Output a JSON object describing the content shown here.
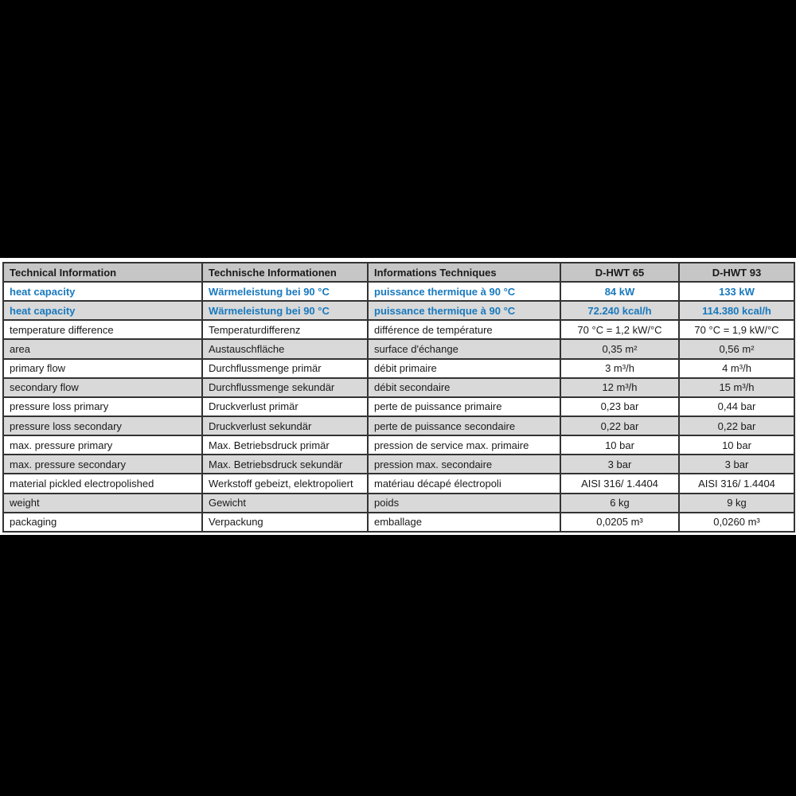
{
  "page": {
    "background": "#000000"
  },
  "table": {
    "columns": [
      "Technical Information",
      "Technische Informationen",
      "Informations Techniques",
      "D-HWT 65",
      "D-HWT 93"
    ],
    "rows": [
      {
        "highlight": true,
        "cells": [
          "heat capacity",
          "Wärmeleistung bei 90 °C",
          "puissance thermique à 90 °C",
          "84 kW",
          "133 kW"
        ]
      },
      {
        "highlight": true,
        "cells": [
          "heat capacity",
          "Wärmeleistung bei 90 °C",
          "puissance thermique à 90 °C",
          "72.240 kcal/h",
          "114.380 kcal/h"
        ]
      },
      {
        "cells": [
          "temperature difference",
          "Temperaturdifferenz",
          "différence de température",
          "70 °C = 1,2 kW/°C",
          "70 °C = 1,9 kW/°C"
        ]
      },
      {
        "cells": [
          "area",
          "Austauschfläche",
          "surface d'échange",
          "0,35 m²",
          "0,56 m²"
        ]
      },
      {
        "cells": [
          "primary flow",
          "Durchflussmenge primär",
          "débit primaire",
          "3 m³/h",
          "4 m³/h"
        ]
      },
      {
        "cells": [
          "secondary flow",
          "Durchflussmenge sekundär",
          "débit secondaire",
          "12 m³/h",
          "15 m³/h"
        ]
      },
      {
        "cells": [
          "pressure loss primary",
          "Druckverlust primär",
          "perte de puissance primaire",
          "0,23 bar",
          "0,44 bar"
        ]
      },
      {
        "cells": [
          "pressure loss secondary",
          "Druckverlust sekundär",
          "perte de puissance secondaire",
          "0,22 bar",
          "0,22 bar"
        ]
      },
      {
        "cells": [
          "max. pressure primary",
          "Max. Betriebsdruck primär",
          "pression de service max. primaire",
          "10 bar",
          "10 bar"
        ]
      },
      {
        "cells": [
          "max. pressure secondary",
          "Max. Betriebsdruck sekundär",
          "pression max. secondaire",
          "3 bar",
          "3 bar"
        ]
      },
      {
        "cells": [
          "material pickled electropolished",
          "Werkstoff gebeizt, elektropoliert",
          "matériau décapé électropoli",
          "AISI 316/ 1.4404",
          "AISI 316/ 1.4404"
        ]
      },
      {
        "cells": [
          "weight",
          "Gewicht",
          "poids",
          "6 kg",
          "9 kg"
        ]
      },
      {
        "cells": [
          "packaging",
          "Verpackung",
          "emballage",
          "0,0205 m³",
          "0,0260 m³"
        ]
      }
    ],
    "colors": {
      "accent_blue": "#1879BE",
      "header_bg": "#C6C6C6",
      "alt_row_bg": "#D9D9D9",
      "border": "#333333",
      "text": "#1A1A1A",
      "row_bg": "#FFFFFF"
    }
  }
}
